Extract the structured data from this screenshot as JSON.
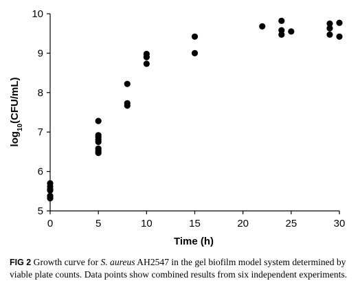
{
  "chart_data": {
    "type": "scatter",
    "title": "",
    "xlabel": "Time (h)",
    "ylabel": {
      "prefix": "log",
      "subscript": "10",
      "suffix": "(CFU/mL)"
    },
    "xlim": [
      0,
      30
    ],
    "ylim": [
      5,
      10
    ],
    "xticks": [
      0,
      5,
      10,
      15,
      20,
      25,
      30
    ],
    "yticks": [
      5,
      6,
      7,
      8,
      9,
      10
    ],
    "grid": false,
    "legend": "none",
    "marker_color": "#000000",
    "series": [
      {
        "x": [
          0,
          0,
          0,
          0,
          0,
          0,
          5,
          5,
          5,
          5,
          5,
          5,
          5,
          5,
          8,
          8,
          8,
          10,
          10,
          10,
          15,
          15,
          22,
          24,
          24,
          24,
          25,
          29,
          29,
          29,
          30,
          30
        ],
        "y": [
          5.7,
          5.62,
          5.55,
          5.52,
          5.38,
          5.32,
          7.28,
          6.92,
          6.87,
          6.8,
          6.75,
          6.58,
          6.52,
          6.47,
          8.22,
          7.73,
          7.67,
          8.98,
          8.9,
          8.73,
          9.42,
          9.0,
          9.68,
          9.82,
          9.58,
          9.47,
          9.55,
          9.75,
          9.63,
          9.47,
          9.77,
          9.42
        ]
      }
    ]
  },
  "caption": {
    "label": "FIG 2",
    "text_before": " Growth curve for ",
    "species": "S. aureus",
    "text_after": " AH2547 in the gel biofilm model system determined by viable plate counts. Data points show combined results from six independent experiments."
  }
}
